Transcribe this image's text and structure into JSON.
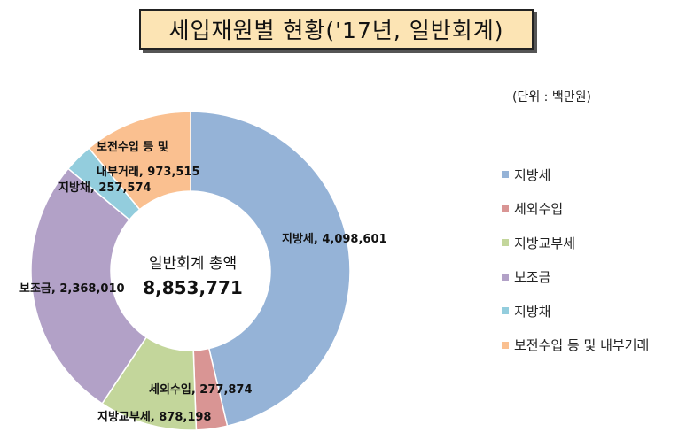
{
  "title": "세입재원별 현황('17년, 일반회계)",
  "unit_label": "(단위 : 백만원)",
  "center": {
    "title": "일반회계 총액",
    "value": "8,853,771"
  },
  "chart_data": {
    "type": "pie",
    "variant": "donut",
    "title": "세입재원별 현황('17년, 일반회계)",
    "total": 8853771,
    "legend_placement": "right",
    "slices": [
      {
        "name": "지방세",
        "value": 4098601,
        "value_label": "4,098,601",
        "color": "#95b3d7"
      },
      {
        "name": "세외수입",
        "value": 277874,
        "value_label": "277,874",
        "color": "#d99594"
      },
      {
        "name": "지방교부세",
        "value": 878198,
        "value_label": "878,198",
        "color": "#c3d69b"
      },
      {
        "name": "보조금",
        "value": 2368010,
        "value_label": "2,368,010",
        "color": "#b2a1c7"
      },
      {
        "name": "지방채",
        "value": 257574,
        "value_label": "257,574",
        "color": "#93cddd"
      },
      {
        "name": "보전수입 등 및 내부거래",
        "value": 973515,
        "value_label": "973,515",
        "color": "#fac090"
      }
    ]
  },
  "labels": {
    "s0": "지방세, 4,098,601",
    "s1": "세외수입, 277,874",
    "s2": "지방교부세, 878,198",
    "s3": "보조금, 2,368,010",
    "s4": "지방채, 257,574",
    "s5_line1": "보전수입 등 및",
    "s5_line2": "내부거래, 973,515"
  }
}
